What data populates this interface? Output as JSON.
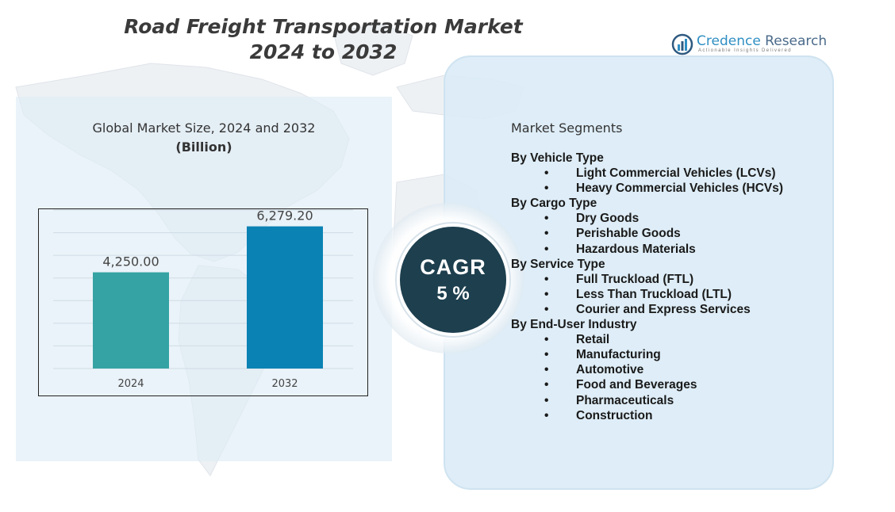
{
  "title": {
    "line1": "Road Freight Transportation Market",
    "line2": "2024 to 2032"
  },
  "logo": {
    "brand": "Credence",
    "name_rest": " Research",
    "tagline": "Actionable Insights Delivered"
  },
  "chart_heading": {
    "line1": "Global Market Size, 2024 and 2032",
    "unit": "(Billion)"
  },
  "chart_data": {
    "type": "bar",
    "categories": [
      "2024",
      "2032"
    ],
    "values": [
      4250.0,
      6279.2
    ],
    "value_labels": [
      "4,250.00",
      "6,279.20"
    ],
    "colors": [
      "#35a3a3",
      "#0a82b4"
    ],
    "title": "",
    "xlabel": "",
    "ylabel": "",
    "ylim": [
      0,
      7000
    ],
    "grid": true,
    "legend": "none"
  },
  "cagr": {
    "label": "CAGR",
    "value": "5 %"
  },
  "segments": {
    "title": "Market Segments",
    "groups": [
      {
        "name": "By Vehicle Type",
        "items": [
          "Light Commercial Vehicles (LCVs)",
          "Heavy Commercial Vehicles (HCVs)"
        ]
      },
      {
        "name": "By Cargo Type",
        "items": [
          "Dry Goods",
          "Perishable Goods",
          "Hazardous Materials"
        ]
      },
      {
        "name": "By Service Type",
        "items": [
          "Full Truckload (FTL)",
          "Less Than Truckload (LTL)",
          "Courier and Express Services"
        ]
      },
      {
        "name": "By End-User Industry",
        "items": [
          "Retail",
          "Manufacturing",
          "Automotive",
          "Food and Beverages",
          "Pharmaceuticals",
          "Construction"
        ]
      }
    ]
  }
}
